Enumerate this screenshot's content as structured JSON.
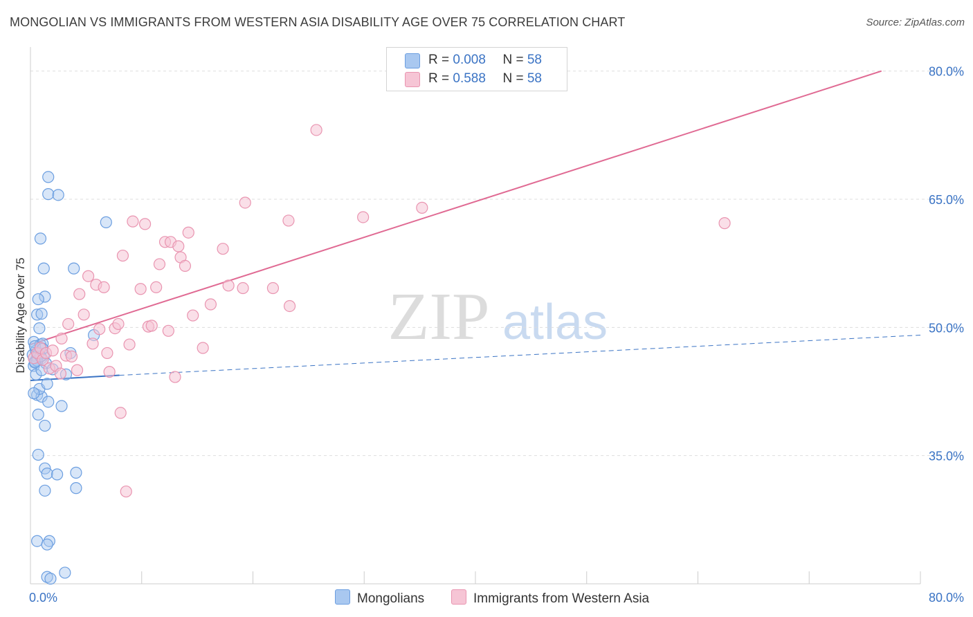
{
  "title": "MONGOLIAN VS IMMIGRANTS FROM WESTERN ASIA DISABILITY AGE OVER 75 CORRELATION CHART",
  "source": "Source: ZipAtlas.com",
  "watermark": {
    "zip": "ZIP",
    "atlas": "atlas"
  },
  "legend": {
    "row1": {
      "r_label": "R = ",
      "r_value": "0.008",
      "n_label": "N = ",
      "n_value": "58"
    },
    "row2": {
      "r_label": "R = ",
      "r_value": "0.588",
      "n_label": "N = ",
      "n_value": "58"
    }
  },
  "colors": {
    "blue": "#6b9ee0",
    "blue_fill": "#a9c8f0",
    "blue_line": "#3a73c4",
    "pink": "#e994b0",
    "pink_fill": "#f6c5d5",
    "pink_line": "#e06a93",
    "accent_text": "#3a73c4"
  },
  "chart_data": {
    "type": "scatter",
    "title": "MONGOLIAN VS IMMIGRANTS FROM WESTERN ASIA DISABILITY AGE OVER 75 CORRELATION CHART",
    "xlabel": "",
    "ylabel": "Disability Age Over 75",
    "xlim": [
      0,
      80
    ],
    "ylim": [
      20,
      82
    ],
    "x_tick_labels": [
      "0.0%",
      "80.0%"
    ],
    "y_ticks": [
      35,
      50,
      65,
      80
    ],
    "y_tick_labels": [
      "35.0%",
      "50.0%",
      "65.0%",
      "80.0%"
    ],
    "series": [
      {
        "name": "Mongolians",
        "R": 0.008,
        "N": 58,
        "trend_solid": [
          [
            0,
            43.8
          ],
          [
            8,
            44.4
          ]
        ],
        "trend_dashed": [
          [
            8,
            44.4
          ],
          [
            80,
            49.1
          ]
        ],
        "points": [
          [
            0.2,
            46.8
          ],
          [
            0.3,
            45.5
          ],
          [
            0.4,
            46.0
          ],
          [
            0.5,
            47.3
          ],
          [
            0.6,
            46.5
          ],
          [
            0.3,
            48.3
          ],
          [
            0.8,
            47.0
          ],
          [
            1.0,
            46.4
          ],
          [
            1.2,
            46.8
          ],
          [
            1.4,
            45.8
          ],
          [
            0.9,
            48.0
          ],
          [
            1.1,
            48.1
          ],
          [
            0.5,
            44.5
          ],
          [
            0.6,
            42.1
          ],
          [
            0.7,
            39.8
          ],
          [
            1.0,
            41.9
          ],
          [
            1.3,
            38.5
          ],
          [
            1.6,
            41.3
          ],
          [
            0.8,
            42.8
          ],
          [
            1.5,
            43.4
          ],
          [
            2.8,
            40.8
          ],
          [
            0.6,
            51.5
          ],
          [
            0.8,
            49.9
          ],
          [
            1.0,
            51.6
          ],
          [
            1.3,
            53.6
          ],
          [
            0.7,
            53.3
          ],
          [
            1.2,
            56.9
          ],
          [
            0.9,
            60.4
          ],
          [
            1.6,
            65.6
          ],
          [
            2.5,
            65.5
          ],
          [
            1.6,
            67.6
          ],
          [
            6.8,
            62.3
          ],
          [
            3.9,
            56.9
          ],
          [
            5.7,
            49.1
          ],
          [
            3.6,
            47.0
          ],
          [
            3.2,
            44.5
          ],
          [
            0.7,
            35.1
          ],
          [
            1.3,
            33.5
          ],
          [
            1.5,
            32.9
          ],
          [
            2.4,
            32.8
          ],
          [
            4.1,
            33.0
          ],
          [
            1.3,
            30.9
          ],
          [
            4.1,
            31.2
          ],
          [
            0.6,
            25.0
          ],
          [
            1.7,
            25.0
          ],
          [
            1.5,
            24.6
          ],
          [
            3.1,
            21.3
          ],
          [
            1.5,
            20.8
          ],
          [
            1.8,
            20.6
          ],
          [
            0.4,
            47.8
          ],
          [
            0.6,
            46.1
          ],
          [
            1.0,
            45.0
          ],
          [
            0.3,
            42.3
          ],
          [
            1.1,
            47.5
          ],
          [
            0.7,
            46.9
          ],
          [
            0.4,
            45.9
          ],
          [
            0.9,
            46.6
          ],
          [
            2.0,
            45.1
          ]
        ]
      },
      {
        "name": "Immigrants from Western Asia",
        "R": 0.588,
        "N": 58,
        "trend_solid": [
          [
            0,
            48.0
          ],
          [
            76.5,
            80.0
          ]
        ],
        "points": [
          [
            0.3,
            46.4
          ],
          [
            0.6,
            47.0
          ],
          [
            0.9,
            47.6
          ],
          [
            1.1,
            46.2
          ],
          [
            1.4,
            47.0
          ],
          [
            1.7,
            45.2
          ],
          [
            2.0,
            47.3
          ],
          [
            2.3,
            45.5
          ],
          [
            2.7,
            44.6
          ],
          [
            3.2,
            46.7
          ],
          [
            3.7,
            46.6
          ],
          [
            4.2,
            45.0
          ],
          [
            2.8,
            48.7
          ],
          [
            3.4,
            50.4
          ],
          [
            4.4,
            53.9
          ],
          [
            4.8,
            51.5
          ],
          [
            5.2,
            56.0
          ],
          [
            5.6,
            48.1
          ],
          [
            5.9,
            55.0
          ],
          [
            6.2,
            49.8
          ],
          [
            6.6,
            54.7
          ],
          [
            6.9,
            47.0
          ],
          [
            7.1,
            44.8
          ],
          [
            7.6,
            49.9
          ],
          [
            7.9,
            50.4
          ],
          [
            8.1,
            40.0
          ],
          [
            8.3,
            58.4
          ],
          [
            8.6,
            30.8
          ],
          [
            8.9,
            48.0
          ],
          [
            9.2,
            62.4
          ],
          [
            9.9,
            54.5
          ],
          [
            10.3,
            62.1
          ],
          [
            10.6,
            50.1
          ],
          [
            10.9,
            50.2
          ],
          [
            11.3,
            54.7
          ],
          [
            11.6,
            57.4
          ],
          [
            12.1,
            60.0
          ],
          [
            12.6,
            60.0
          ],
          [
            12.4,
            49.6
          ],
          [
            13.0,
            44.2
          ],
          [
            13.3,
            59.5
          ],
          [
            13.5,
            58.2
          ],
          [
            13.9,
            57.2
          ],
          [
            14.2,
            61.1
          ],
          [
            14.6,
            51.4
          ],
          [
            15.5,
            47.6
          ],
          [
            16.2,
            52.7
          ],
          [
            17.3,
            59.2
          ],
          [
            17.8,
            54.9
          ],
          [
            19.1,
            54.6
          ],
          [
            19.3,
            64.6
          ],
          [
            21.8,
            54.6
          ],
          [
            23.2,
            62.5
          ],
          [
            23.3,
            52.5
          ],
          [
            25.7,
            73.1
          ],
          [
            29.9,
            62.9
          ],
          [
            35.2,
            64.0
          ],
          [
            62.4,
            62.2
          ]
        ]
      }
    ]
  },
  "bottom_legend": {
    "series1": "Mongolians",
    "series2": "Immigrants from Western Asia"
  }
}
